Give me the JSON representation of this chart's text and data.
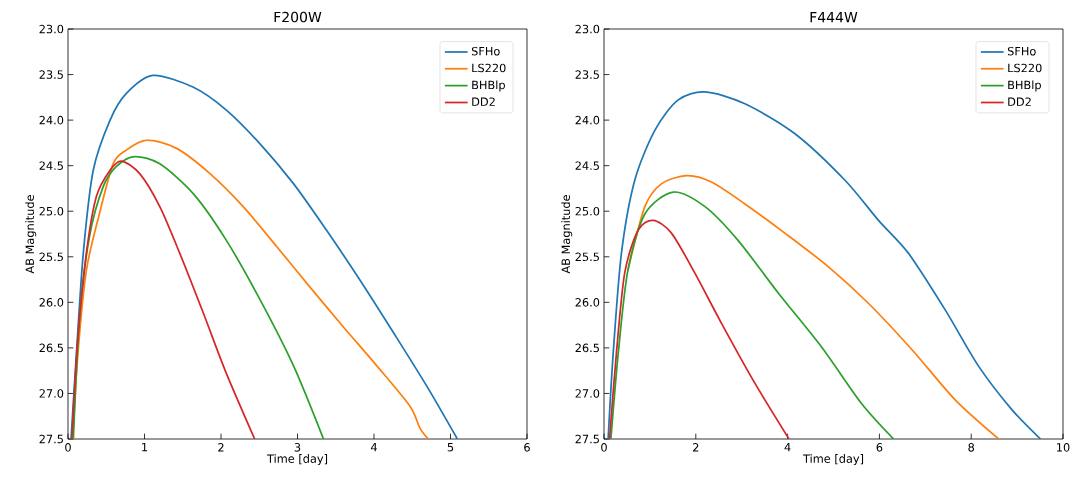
{
  "chart_data": [
    {
      "type": "line",
      "title": "F200W",
      "xlabel": "Time [day]",
      "ylabel": "AB Magnitude",
      "xlim": [
        0,
        6
      ],
      "ylim": [
        27.5,
        23.0
      ],
      "xticks": [
        0,
        1,
        2,
        3,
        4,
        5,
        6
      ],
      "yticks": [
        {
          "value": 23.0,
          "label": "23.0"
        },
        {
          "value": 23.5,
          "label": "23.5"
        },
        {
          "value": 24.0,
          "label": "24.0"
        },
        {
          "value": 24.5,
          "label": "24.5"
        },
        {
          "value": 25.0,
          "label": "25.0"
        },
        {
          "value": 25.5,
          "label": "25.5"
        },
        {
          "value": 26.0,
          "label": "26.0"
        },
        {
          "value": 26.5,
          "label": "26.5"
        },
        {
          "value": 27.0,
          "label": "27.0"
        },
        {
          "value": 27.5,
          "label": "27.5"
        }
      ],
      "legend": "top right",
      "grid": false,
      "line_style": "solid",
      "marker": "none",
      "series": [
        {
          "name": "SFHo",
          "color": "#1f77b4",
          "x": [
            0.04,
            0.11,
            0.2,
            0.33,
            0.55,
            0.76,
            1.11,
            1.64,
            2.07,
            2.51,
            2.95,
            3.38,
            3.82,
            4.26,
            4.69,
            5.09
          ],
          "values": [
            27.5,
            26.56,
            25.46,
            24.55,
            24.0,
            23.71,
            23.51,
            23.64,
            23.89,
            24.26,
            24.7,
            25.21,
            25.76,
            26.34,
            26.92,
            27.5
          ]
        },
        {
          "name": "LS220",
          "color": "#ff7f0e",
          "x": [
            0.06,
            0.13,
            0.24,
            0.41,
            0.59,
            0.76,
            1.03,
            1.42,
            1.86,
            2.29,
            2.73,
            3.16,
            3.6,
            4.04,
            4.47,
            4.6,
            4.71
          ],
          "values": [
            27.5,
            26.56,
            25.65,
            25.03,
            24.48,
            24.33,
            24.22,
            24.31,
            24.59,
            24.95,
            25.39,
            25.83,
            26.27,
            26.7,
            27.14,
            27.38,
            27.5
          ]
        },
        {
          "name": "BHBlp",
          "color": "#2ca02c",
          "x": [
            0.07,
            0.15,
            0.28,
            0.46,
            0.63,
            0.87,
            1.2,
            1.64,
            2.07,
            2.51,
            2.95,
            3.34
          ],
          "values": [
            27.5,
            26.19,
            25.28,
            24.73,
            24.51,
            24.4,
            24.48,
            24.81,
            25.32,
            25.97,
            26.7,
            27.5
          ]
        },
        {
          "name": "DD2",
          "color": "#d62728",
          "x": [
            0.05,
            0.13,
            0.24,
            0.37,
            0.55,
            0.7,
            0.94,
            1.2,
            1.46,
            1.77,
            2.07,
            2.44
          ],
          "values": [
            27.5,
            26.38,
            25.46,
            24.84,
            24.55,
            24.45,
            24.59,
            24.95,
            25.46,
            26.12,
            26.78,
            27.5
          ]
        }
      ]
    },
    {
      "type": "line",
      "title": "F444W",
      "xlabel": "Time [day]",
      "ylabel": "AB Magnitude",
      "xlim": [
        0,
        10
      ],
      "ylim": [
        27.5,
        23.0
      ],
      "xticks": [
        0,
        2,
        4,
        6,
        8,
        10
      ],
      "yticks": [
        {
          "value": 23.0,
          "label": "23.0"
        },
        {
          "value": 23.5,
          "label": "23.5"
        },
        {
          "value": 24.0,
          "label": "24.0"
        },
        {
          "value": 24.5,
          "label": "24.5"
        },
        {
          "value": 25.0,
          "label": "25.0"
        },
        {
          "value": 25.5,
          "label": "25.5"
        },
        {
          "value": 26.0,
          "label": "26.0"
        },
        {
          "value": 26.5,
          "label": "26.5"
        },
        {
          "value": 27.0,
          "label": "27.0"
        },
        {
          "value": 27.5,
          "label": "27.5"
        }
      ],
      "legend": "top right",
      "grid": false,
      "line_style": "solid",
      "marker": "none",
      "series": [
        {
          "name": "SFHo",
          "color": "#1f77b4",
          "x": [
            0.09,
            0.2,
            0.38,
            0.67,
            1.11,
            1.61,
            2.2,
            3.07,
            4.16,
            5.25,
            5.98,
            6.63,
            7.43,
            8.16,
            8.89,
            9.51
          ],
          "values": [
            27.5,
            26.56,
            25.46,
            24.66,
            24.11,
            23.78,
            23.69,
            23.82,
            24.15,
            24.66,
            25.1,
            25.46,
            26.08,
            26.7,
            27.18,
            27.5
          ]
        },
        {
          "name": "LS220",
          "color": "#ff7f0e",
          "x": [
            0.52,
            0.89,
            1.25,
            1.8,
            2.34,
            3.07,
            3.94,
            4.89,
            5.76,
            6.71,
            7.65,
            8.6
          ],
          "values": [
            25.65,
            24.95,
            24.7,
            24.61,
            24.68,
            24.92,
            25.24,
            25.61,
            26.01,
            26.52,
            27.07,
            27.5
          ]
        },
        {
          "name": "BHBlp",
          "color": "#2ca02c",
          "x": [
            0.15,
            0.31,
            0.52,
            0.89,
            1.51,
            2.2,
            2.92,
            3.8,
            4.74,
            5.61,
            6.31
          ],
          "values": [
            27.5,
            26.56,
            25.65,
            25.03,
            24.79,
            24.95,
            25.32,
            25.9,
            26.49,
            27.11,
            27.5
          ]
        },
        {
          "name": "DD2",
          "color": "#d62728",
          "x": [
            0.12,
            0.27,
            0.45,
            0.74,
            1.07,
            1.47,
            1.98,
            2.56,
            3.29,
            4.03
          ],
          "values": [
            27.5,
            26.56,
            25.68,
            25.21,
            25.1,
            25.24,
            25.68,
            26.23,
            26.89,
            27.5
          ]
        }
      ]
    }
  ]
}
